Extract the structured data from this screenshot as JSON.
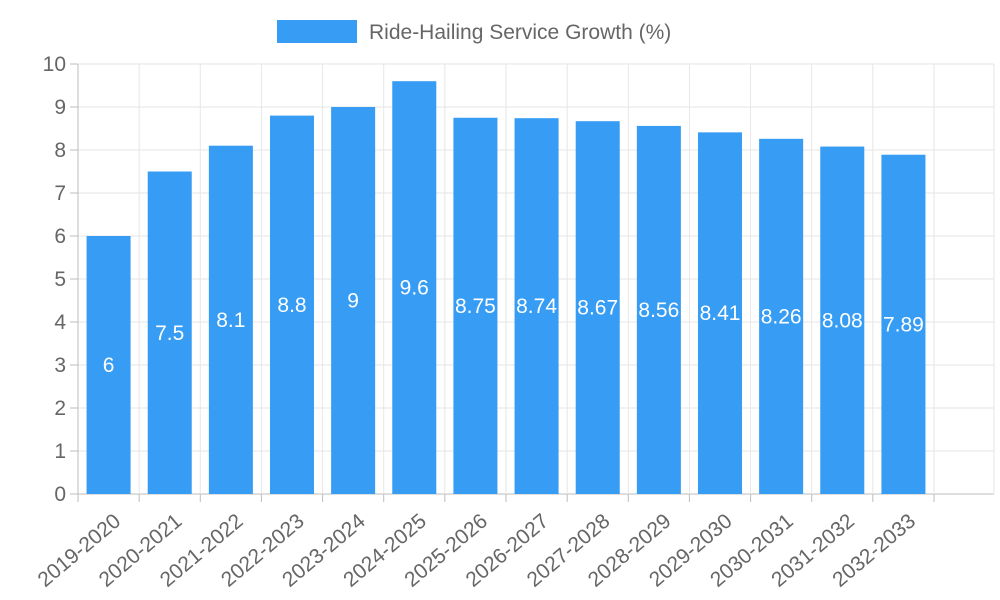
{
  "chart_data": {
    "type": "bar",
    "title": "",
    "xlabel": "",
    "ylabel": "",
    "ylim": [
      0,
      10
    ],
    "yticks": [
      0,
      1,
      2,
      3,
      4,
      5,
      6,
      7,
      8,
      9,
      10
    ],
    "grid": true,
    "legend_position": "top-center",
    "categories": [
      "2019-2020",
      "2020-2021",
      "2021-2022",
      "2022-2023",
      "2023-2024",
      "2024-2025",
      "2025-2026",
      "2026-2027",
      "2027-2028",
      "2028-2029",
      "2029-2030",
      "2030-2031",
      "2031-2032",
      "2032-2033"
    ],
    "series": [
      {
        "name": "Ride-Hailing Service Growth (%)",
        "color": "#379cf3",
        "values": [
          6,
          7.5,
          8.1,
          8.8,
          9,
          9.6,
          8.75,
          8.74,
          8.67,
          8.56,
          8.41,
          8.26,
          8.08,
          7.89
        ],
        "labels": [
          "6",
          "7.5",
          "8.1",
          "8.8",
          "9",
          "9.6",
          "8.75",
          "8.74",
          "8.67",
          "8.56",
          "8.41",
          "8.26",
          "8.08",
          "7.89"
        ]
      }
    ]
  }
}
